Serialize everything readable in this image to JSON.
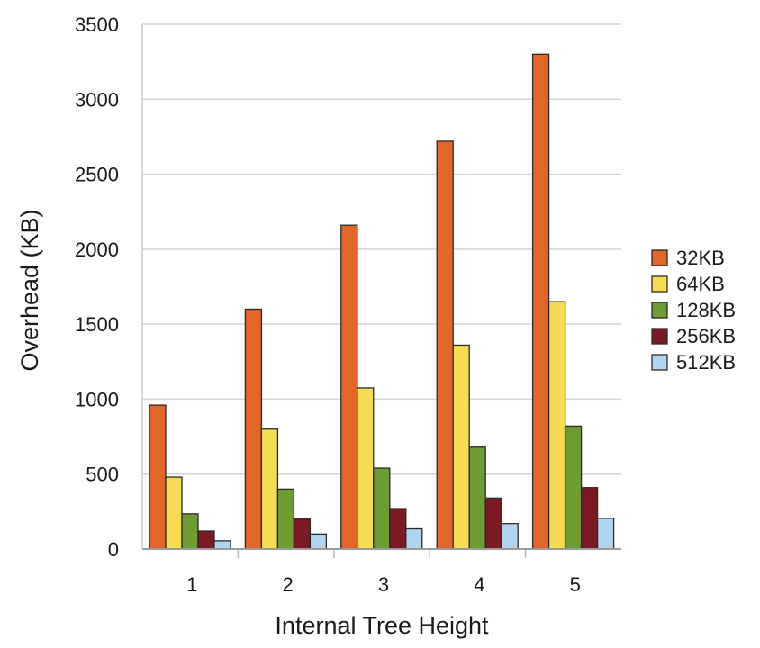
{
  "chart_data": {
    "type": "bar",
    "title": "",
    "xlabel": "Internal Tree Height",
    "ylabel": "Overhead (KB)",
    "categories": [
      "1",
      "2",
      "3",
      "4",
      "5"
    ],
    "ylim": [
      0,
      3500
    ],
    "yticks": [
      0,
      500,
      1000,
      1500,
      2000,
      2500,
      3000,
      3500
    ],
    "grid": "horizontal",
    "legend_position": "right",
    "series": [
      {
        "name": "32KB",
        "color": "#e2652a",
        "values": [
          960,
          1600,
          2160,
          2720,
          3300
        ]
      },
      {
        "name": "64KB",
        "color": "#f6dc52",
        "values": [
          480,
          800,
          1075,
          1360,
          1650
        ]
      },
      {
        "name": "128KB",
        "color": "#6e9b32",
        "values": [
          235,
          400,
          540,
          680,
          820
        ]
      },
      {
        "name": "256KB",
        "color": "#7a1a24",
        "values": [
          120,
          200,
          270,
          340,
          410
        ]
      },
      {
        "name": "512KB",
        "color": "#b3d4ee",
        "values": [
          55,
          100,
          135,
          170,
          205
        ]
      }
    ]
  }
}
